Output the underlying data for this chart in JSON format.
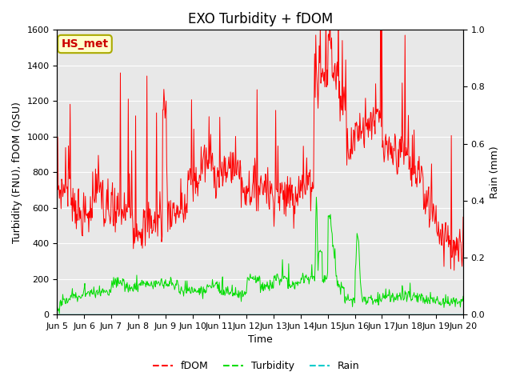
{
  "title": "EXO Turbidity + fDOM",
  "xlabel": "Time",
  "ylabel_left": "Turbidity (FNU), fDOM (QSU)",
  "ylabel_right": "Rain (mm)",
  "ylim_left": [
    0,
    1600
  ],
  "ylim_right": [
    0.0,
    1.0
  ],
  "x_start": 5.0,
  "x_end": 20.0,
  "x_ticks": [
    5,
    6,
    7,
    8,
    9,
    10,
    11,
    12,
    13,
    14,
    15,
    16,
    17,
    18,
    19,
    20
  ],
  "x_tick_labels": [
    "Jun 5",
    "Jun 6",
    "Jun 7",
    "Jun 8",
    "Jun 9",
    "Jun 10",
    "Jun 11",
    "Jun 12",
    "Jun 13",
    "Jun 14",
    "Jun 15",
    "Jun 16",
    "Jun 17",
    "Jun 18",
    "Jun 19",
    "Jun 20"
  ],
  "fdom_color": "#ff0000",
  "turbidity_color": "#00dd00",
  "rain_color": "#00cccc",
  "fig_bg_color": "#ffffff",
  "plot_bg_color": "#e8e8e8",
  "legend_box_label": "HS_met",
  "legend_box_facecolor": "#ffffcc",
  "legend_box_edgecolor": "#aaaa00",
  "legend_box_text_color": "#cc0000",
  "title_fontsize": 12,
  "axis_label_fontsize": 9,
  "tick_fontsize": 8,
  "grid_color": "#ffffff",
  "yticks_left": [
    0,
    200,
    400,
    600,
    800,
    1000,
    1200,
    1400,
    1600
  ],
  "yticks_right": [
    0.0,
    0.2,
    0.4,
    0.6,
    0.8,
    1.0
  ]
}
